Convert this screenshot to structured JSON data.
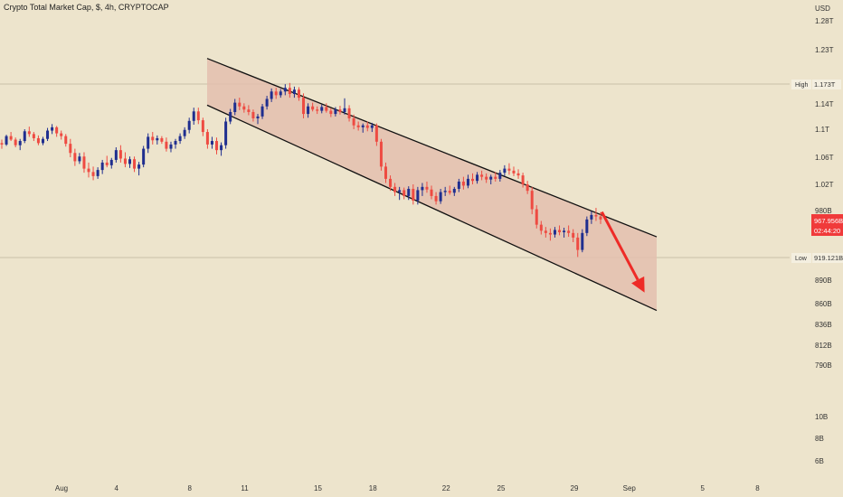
{
  "header": {
    "title": "Crypto Total Market Cap, $, 4h, CRYPTOCAP"
  },
  "colors": {
    "background": "#ede4cc",
    "up": "#1f2e8f",
    "down": "#ee4b42",
    "channel_fill": "#e3bfae",
    "channel_line": "#111111",
    "arrow": "#ee2b27",
    "price_badge": "#f03a3a"
  },
  "chart_data": {
    "type": "candlestick",
    "title": "Crypto Total Market Cap, $, 4h, CRYPTOCAP",
    "y_axis": {
      "currency": "USD",
      "scale": "log",
      "range": [
        5.7,
        1330
      ],
      "unit_note": "billions USD",
      "ticks": [
        {
          "value": 1280,
          "label": "1.28T"
        },
        {
          "value": 1230,
          "label": "1.23T"
        },
        {
          "value": 1140,
          "label": "1.14T"
        },
        {
          "value": 1100,
          "label": "1.1T"
        },
        {
          "value": 1060,
          "label": "1.06T"
        },
        {
          "value": 1020,
          "label": "1.02T"
        },
        {
          "value": 980,
          "label": "980B"
        },
        {
          "value": 890,
          "label": "890B"
        },
        {
          "value": 860,
          "label": "860B"
        },
        {
          "value": 836,
          "label": "836B"
        },
        {
          "value": 812,
          "label": "812B"
        },
        {
          "value": 790,
          "label": "790B"
        },
        {
          "value": 10,
          "label": "10B"
        },
        {
          "value": 8,
          "label": "8B"
        },
        {
          "value": 6,
          "label": "6B"
        }
      ]
    },
    "x_axis": {
      "range": [
        "2024-07-27",
        "2024-09-09"
      ],
      "ticks": [
        {
          "date": "2024-08-01",
          "label": "Aug"
        },
        {
          "date": "2024-08-04",
          "label": "4"
        },
        {
          "date": "2024-08-08",
          "label": "8"
        },
        {
          "date": "2024-08-11",
          "label": "11"
        },
        {
          "date": "2024-08-15",
          "label": "15"
        },
        {
          "date": "2024-08-18",
          "label": "18"
        },
        {
          "date": "2024-08-22",
          "label": "22"
        },
        {
          "date": "2024-08-25",
          "label": "25"
        },
        {
          "date": "2024-08-29",
          "label": "29"
        },
        {
          "date": "2024-09-01",
          "label": "Sep"
        },
        {
          "date": "2024-09-05",
          "label": "5"
        },
        {
          "date": "2024-09-08",
          "label": "8"
        }
      ]
    },
    "markers": {
      "high": {
        "label": "High",
        "value_label": "1.173T",
        "value": 1173
      },
      "low": {
        "label": "Low",
        "value_label": "919.121B",
        "value": 919.121
      },
      "current": {
        "value_label": "967.956B",
        "value": 967.956,
        "countdown": "02:44:20"
      }
    },
    "channel": {
      "upper": [
        [
          "2024-08-09",
          1215
        ],
        [
          "2024-09-02",
          945
        ]
      ],
      "lower": [
        [
          "2024-08-09",
          1138
        ],
        [
          "2024-09-02",
          852
        ]
      ],
      "right_edge": "2024-09-02"
    },
    "arrow": {
      "from": [
        "2024-08-30 12:00",
        978
      ],
      "to": [
        "2024-09-01 20:00",
        874
      ],
      "direction": "down"
    },
    "candles": [
      [
        1080,
        1085,
        1072,
        1078
      ],
      [
        1078,
        1092,
        1076,
        1090
      ],
      [
        1090,
        1096,
        1083,
        1085
      ],
      [
        1085,
        1088,
        1074,
        1077
      ],
      [
        1077,
        1086,
        1070,
        1083
      ],
      [
        1083,
        1100,
        1080,
        1097
      ],
      [
        1097,
        1104,
        1089,
        1093
      ],
      [
        1093,
        1096,
        1083,
        1087
      ],
      [
        1087,
        1091,
        1077,
        1080
      ],
      [
        1080,
        1089,
        1077,
        1086
      ],
      [
        1086,
        1102,
        1083,
        1098
      ],
      [
        1098,
        1108,
        1093,
        1103
      ],
      [
        1103,
        1105,
        1089,
        1094
      ],
      [
        1094,
        1098,
        1085,
        1090
      ],
      [
        1090,
        1093,
        1075,
        1079
      ],
      [
        1079,
        1086,
        1060,
        1066
      ],
      [
        1066,
        1072,
        1047,
        1054
      ],
      [
        1054,
        1066,
        1050,
        1061
      ],
      [
        1061,
        1067,
        1037,
        1043
      ],
      [
        1043,
        1052,
        1030,
        1038
      ],
      [
        1038,
        1046,
        1026,
        1032
      ],
      [
        1032,
        1045,
        1028,
        1041
      ],
      [
        1041,
        1056,
        1035,
        1052
      ],
      [
        1052,
        1062,
        1045,
        1048
      ],
      [
        1048,
        1059,
        1043,
        1056
      ],
      [
        1056,
        1074,
        1052,
        1070
      ],
      [
        1070,
        1077,
        1052,
        1058
      ],
      [
        1058,
        1067,
        1045,
        1050
      ],
      [
        1050,
        1061,
        1044,
        1057
      ],
      [
        1057,
        1061,
        1038,
        1043
      ],
      [
        1043,
        1053,
        1033,
        1049
      ],
      [
        1049,
        1076,
        1045,
        1072
      ],
      [
        1072,
        1094,
        1066,
        1089
      ],
      [
        1089,
        1096,
        1078,
        1084
      ],
      [
        1084,
        1091,
        1078,
        1087
      ],
      [
        1087,
        1090,
        1079,
        1082
      ],
      [
        1082,
        1088,
        1068,
        1072
      ],
      [
        1072,
        1082,
        1067,
        1078
      ],
      [
        1078,
        1086,
        1072,
        1083
      ],
      [
        1083,
        1094,
        1079,
        1090
      ],
      [
        1090,
        1103,
        1086,
        1099
      ],
      [
        1099,
        1118,
        1094,
        1113
      ],
      [
        1113,
        1134,
        1107,
        1128
      ],
      [
        1128,
        1134,
        1108,
        1114
      ],
      [
        1114,
        1118,
        1090,
        1096
      ],
      [
        1096,
        1100,
        1072,
        1078
      ],
      [
        1078,
        1089,
        1072,
        1083
      ],
      [
        1083,
        1088,
        1064,
        1070
      ],
      [
        1070,
        1081,
        1062,
        1077
      ],
      [
        1077,
        1118,
        1072,
        1112
      ],
      [
        1112,
        1132,
        1108,
        1127
      ],
      [
        1127,
        1148,
        1122,
        1142
      ],
      [
        1142,
        1150,
        1130,
        1136
      ],
      [
        1136,
        1141,
        1126,
        1131
      ],
      [
        1131,
        1138,
        1122,
        1127
      ],
      [
        1127,
        1131,
        1112,
        1117
      ],
      [
        1117,
        1124,
        1108,
        1120
      ],
      [
        1120,
        1140,
        1116,
        1136
      ],
      [
        1136,
        1153,
        1131,
        1148
      ],
      [
        1148,
        1165,
        1143,
        1160
      ],
      [
        1160,
        1166,
        1148,
        1154
      ],
      [
        1154,
        1164,
        1150,
        1160
      ],
      [
        1160,
        1172,
        1154,
        1166
      ],
      [
        1166,
        1174,
        1150,
        1156
      ],
      [
        1156,
        1168,
        1150,
        1163
      ],
      [
        1163,
        1167,
        1145,
        1150
      ],
      [
        1150,
        1157,
        1117,
        1124
      ],
      [
        1124,
        1141,
        1118,
        1136
      ],
      [
        1136,
        1142,
        1128,
        1131
      ],
      [
        1131,
        1136,
        1124,
        1129
      ],
      [
        1129,
        1139,
        1125,
        1135
      ],
      [
        1135,
        1141,
        1126,
        1129
      ],
      [
        1129,
        1133,
        1119,
        1124
      ],
      [
        1124,
        1135,
        1120,
        1131
      ],
      [
        1131,
        1137,
        1123,
        1127
      ],
      [
        1127,
        1149,
        1123,
        1133
      ],
      [
        1133,
        1138,
        1112,
        1117
      ],
      [
        1117,
        1123,
        1100,
        1106
      ],
      [
        1106,
        1112,
        1098,
        1103
      ],
      [
        1103,
        1109,
        1095,
        1106
      ],
      [
        1106,
        1112,
        1097,
        1102
      ],
      [
        1102,
        1110,
        1096,
        1106
      ],
      [
        1106,
        1109,
        1076,
        1082
      ],
      [
        1082,
        1086,
        1040,
        1046
      ],
      [
        1046,
        1052,
        1022,
        1028
      ],
      [
        1028,
        1033,
        1010,
        1016
      ],
      [
        1016,
        1022,
        1002,
        1008
      ],
      [
        1008,
        1016,
        996,
        1011
      ],
      [
        1011,
        1015,
        997,
        1002
      ],
      [
        1002,
        1017,
        996,
        1013
      ],
      [
        1013,
        1020,
        989,
        995
      ],
      [
        995,
        1016,
        989,
        1011
      ],
      [
        1011,
        1022,
        1002,
        1016
      ],
      [
        1016,
        1024,
        1007,
        1012
      ],
      [
        1012,
        1018,
        997,
        1002
      ],
      [
        1002,
        1008,
        989,
        994
      ],
      [
        994,
        1013,
        990,
        1008
      ],
      [
        1008,
        1016,
        1002,
        1010
      ],
      [
        1010,
        1018,
        1004,
        1007
      ],
      [
        1007,
        1016,
        1002,
        1013
      ],
      [
        1013,
        1028,
        1008,
        1024
      ],
      [
        1024,
        1031,
        1012,
        1018
      ],
      [
        1018,
        1034,
        1014,
        1028
      ],
      [
        1028,
        1036,
        1020,
        1025
      ],
      [
        1025,
        1038,
        1021,
        1034
      ],
      [
        1034,
        1040,
        1026,
        1031
      ],
      [
        1031,
        1036,
        1022,
        1027
      ],
      [
        1027,
        1034,
        1020,
        1031
      ],
      [
        1031,
        1038,
        1024,
        1028
      ],
      [
        1028,
        1041,
        1024,
        1037
      ],
      [
        1037,
        1048,
        1032,
        1043
      ],
      [
        1043,
        1051,
        1034,
        1040
      ],
      [
        1040,
        1046,
        1032,
        1036
      ],
      [
        1036,
        1042,
        1028,
        1033
      ],
      [
        1033,
        1037,
        1015,
        1020
      ],
      [
        1020,
        1025,
        1005,
        1010
      ],
      [
        1010,
        1016,
        975,
        982
      ],
      [
        982,
        988,
        956,
        961
      ],
      [
        961,
        966,
        948,
        953
      ],
      [
        953,
        958,
        944,
        950
      ],
      [
        950,
        956,
        940,
        948
      ],
      [
        948,
        958,
        944,
        954
      ],
      [
        954,
        960,
        947,
        951
      ],
      [
        951,
        957,
        944,
        953
      ],
      [
        953,
        960,
        945,
        950
      ],
      [
        950,
        955,
        938,
        944
      ],
      [
        944,
        950,
        919,
        928
      ],
      [
        928,
        955,
        925,
        950
      ],
      [
        950,
        972,
        946,
        968
      ],
      [
        968,
        979,
        962,
        974
      ],
      [
        974,
        984,
        966,
        972
      ],
      [
        972,
        978,
        962,
        968
      ]
    ]
  }
}
